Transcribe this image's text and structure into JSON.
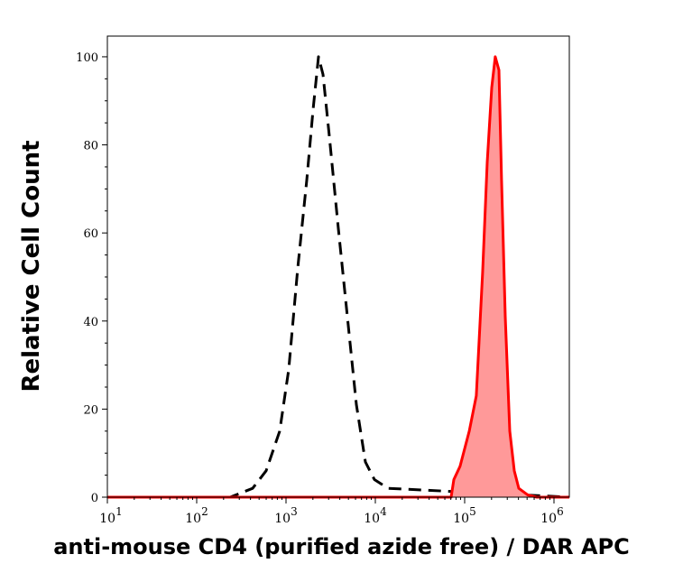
{
  "chart_data": {
    "type": "area",
    "xlabel": "anti-mouse CD4 (purified azide free) / DAR APC",
    "ylabel": "Relative Cell Count",
    "x_scale": "log",
    "xlim": [
      10,
      1500000
    ],
    "ylim": [
      0,
      104.7
    ],
    "x_ticks": [
      10,
      100,
      1000,
      10000,
      100000,
      1000000
    ],
    "x_tick_labels": [
      {
        "base": "10",
        "exp": "1"
      },
      {
        "base": "10",
        "exp": "2"
      },
      {
        "base": "10",
        "exp": "3"
      },
      {
        "base": "10",
        "exp": "4"
      },
      {
        "base": "10",
        "exp": "5"
      },
      {
        "base": "10",
        "exp": "6"
      }
    ],
    "y_ticks": [
      0,
      20,
      40,
      60,
      80,
      100
    ],
    "y_tick_labels": [
      "0",
      "20",
      "40",
      "60",
      "80",
      "100"
    ],
    "grid": false,
    "series": [
      {
        "style": "dashed",
        "color": "#000000",
        "fill": "none",
        "x": [
          10,
          237,
          423,
          600,
          849,
          1072,
          1352,
          1707,
          2009,
          2311,
          2596,
          3055,
          3855,
          4866,
          6141,
          7750,
          9772,
          13840,
          1500000
        ],
        "y": [
          0,
          0,
          2,
          6,
          15,
          29,
          52,
          72,
          88,
          100,
          96,
          82,
          61,
          41,
          21,
          8,
          4,
          2,
          0
        ]
      },
      {
        "style": "solid",
        "color": "#ff0000",
        "fill": "#ff9999",
        "x": [
          10,
          70500,
          75700,
          88900,
          112500,
          135000,
          159000,
          179000,
          201000,
          220000,
          242000,
          259000,
          285000,
          320000,
          359000,
          404000,
          509000,
          642000,
          1500000
        ],
        "y": [
          0,
          0,
          4,
          7,
          15,
          23,
          51,
          76,
          93,
          100,
          97,
          72,
          41,
          15,
          6,
          2,
          0.5,
          0,
          0
        ]
      }
    ]
  }
}
